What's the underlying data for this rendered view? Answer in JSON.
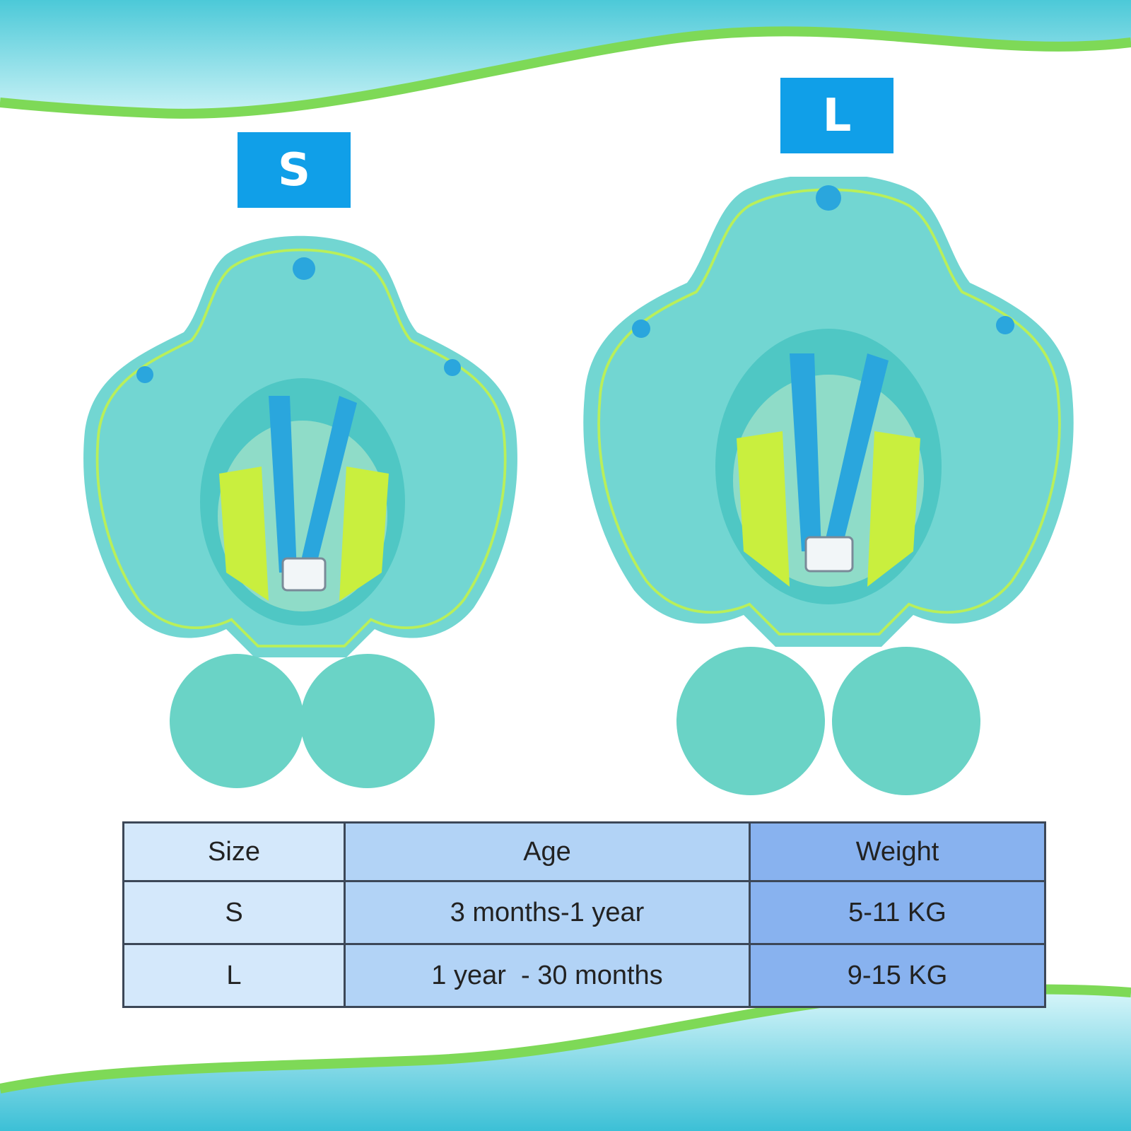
{
  "products": [
    {
      "size_label": "S"
    },
    {
      "size_label": "L"
    }
  ],
  "table": {
    "headers": [
      "Size",
      "Age",
      "Weight"
    ],
    "rows": [
      [
        "S",
        "3 months-1 year",
        "5-11 KG"
      ],
      [
        "L",
        "1 year  - 30 months",
        "9-15 KG"
      ]
    ]
  },
  "colors": {
    "tag_blue": "#109fe8",
    "wave_green": "#7ed957",
    "wave_cyan": "#6fd6e8",
    "float_aqua": "#72d6d2",
    "seat_lime": "#c9ef3e",
    "strap_blue": "#2aa6dd"
  },
  "icons": [
    "wave-top-border",
    "wave-bottom-border",
    "swim-float-icon"
  ]
}
